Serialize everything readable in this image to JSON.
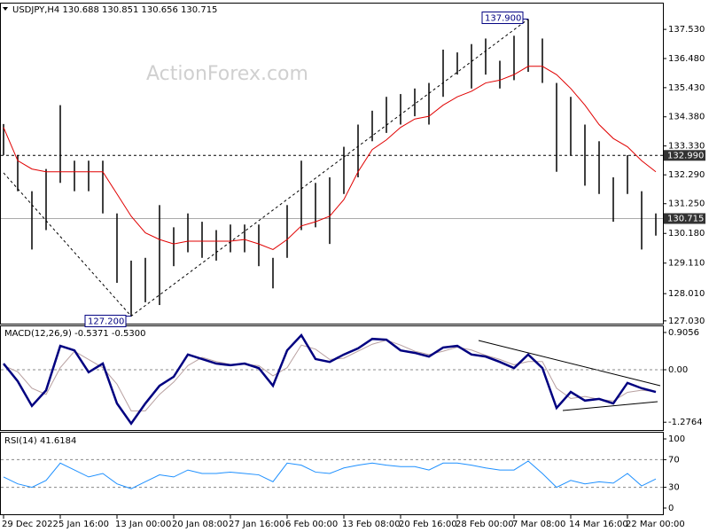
{
  "chart_data": [
    {
      "type": "hilo",
      "title": "USDJPY,H4 130.688 130.851 130.656 130.715",
      "watermark": "ActionForex.com",
      "high": {
        "color": "#000000",
        "values": [
          134.12,
          133.0,
          131.7,
          132.5,
          134.8,
          132.8,
          132.8,
          132.8,
          130.9,
          129.2,
          129.3,
          131.2,
          130.4,
          130.9,
          130.6,
          130.3,
          130.5,
          130.5,
          130.5,
          129.3,
          131.2,
          132.8,
          132.0,
          132.2,
          133.3,
          134.1,
          134.6,
          135.1,
          135.2,
          135.4,
          135.6,
          136.8,
          136.7,
          137.0,
          137.2,
          136.4,
          137.3,
          137.9,
          137.2,
          135.6,
          135.1,
          134.1,
          133.5,
          132.2,
          133.0,
          131.7,
          130.9
        ]
      },
      "low": {
        "color": "#000000",
        "values": [
          133.0,
          131.7,
          129.6,
          130.3,
          132.0,
          131.7,
          131.7,
          130.9,
          128.4,
          127.2,
          127.7,
          127.6,
          129.0,
          129.5,
          129.3,
          129.2,
          129.5,
          129.5,
          129.0,
          128.2,
          129.3,
          130.3,
          130.4,
          129.8,
          131.6,
          132.2,
          133.5,
          133.8,
          134.1,
          134.4,
          134.1,
          135.1,
          135.9,
          135.4,
          135.9,
          135.4,
          135.7,
          136.0,
          135.6,
          132.4,
          133.0,
          131.9,
          131.6,
          130.6,
          131.6,
          129.6,
          130.1
        ]
      },
      "ma": {
        "color": "#e00000",
        "values": [
          134.0,
          132.8,
          132.5,
          132.4,
          132.4,
          132.4,
          132.4,
          132.4,
          131.6,
          130.8,
          130.2,
          129.96,
          129.8,
          129.9,
          129.9,
          129.9,
          129.9,
          129.96,
          129.8,
          129.6,
          129.96,
          130.45,
          130.6,
          130.8,
          131.4,
          132.4,
          133.2,
          133.55,
          134.0,
          134.3,
          134.4,
          134.8,
          135.1,
          135.3,
          135.6,
          135.7,
          135.9,
          136.2,
          136.2,
          135.9,
          135.4,
          134.8,
          134.1,
          133.6,
          133.3,
          132.8,
          132.4
        ]
      },
      "ylim": [
        126.93,
        138.46
      ],
      "yticks": [
        {
          "value": 127.03,
          "label": "127.030"
        },
        {
          "value": 128.01,
          "label": "128.010"
        },
        {
          "value": 129.11,
          "label": "129.110"
        },
        {
          "value": 130.18,
          "label": "130.180"
        },
        {
          "value": 131.25,
          "label": "131.250"
        },
        {
          "value": 132.29,
          "label": "132.290"
        },
        {
          "value": 133.33,
          "label": "133.330"
        },
        {
          "value": 134.38,
          "label": "134.380"
        },
        {
          "value": 135.43,
          "label": "135.430"
        },
        {
          "value": 136.48,
          "label": "136.480"
        },
        {
          "value": 137.53,
          "label": "137.530"
        }
      ],
      "levels": [
        {
          "value": 132.99,
          "label": "132.990",
          "dashed": true
        },
        {
          "value": 130.715,
          "label": "130.715",
          "dashed": false
        }
      ],
      "annotations": [
        {
          "value": 137.9,
          "label": "137.900"
        },
        {
          "value": 127.2,
          "label": "127.200"
        }
      ]
    },
    {
      "type": "macd",
      "title": "MACD(12,26,9) -0.5371 -0.5300",
      "main": {
        "color": "#000080",
        "values": [
          0.15,
          -0.28,
          -0.88,
          -0.5,
          0.58,
          0.47,
          -0.06,
          0.15,
          -0.82,
          -1.31,
          -0.82,
          -0.39,
          -0.17,
          0.37,
          0.26,
          0.15,
          0.11,
          0.15,
          0.04,
          -0.39,
          0.47,
          0.84,
          0.26,
          0.19,
          0.37,
          0.52,
          0.75,
          0.73,
          0.47,
          0.41,
          0.32,
          0.54,
          0.58,
          0.37,
          0.32,
          0.19,
          0.04,
          0.37,
          0.04,
          -0.93,
          -0.54,
          -0.75,
          -0.71,
          -0.82,
          -0.32,
          -0.45,
          -0.54
        ]
      },
      "signal": {
        "color": "#b8a0a0",
        "values": [
          0.1,
          -0.05,
          -0.45,
          -0.6,
          0.05,
          0.45,
          0.25,
          0.05,
          -0.35,
          -1.0,
          -1.0,
          -0.6,
          -0.3,
          0.1,
          0.3,
          0.2,
          0.13,
          0.13,
          0.1,
          -0.15,
          0.05,
          0.6,
          0.5,
          0.25,
          0.28,
          0.45,
          0.62,
          0.72,
          0.6,
          0.45,
          0.37,
          0.45,
          0.55,
          0.48,
          0.35,
          0.25,
          0.12,
          0.2,
          0.2,
          -0.45,
          -0.7,
          -0.65,
          -0.72,
          -0.76,
          -0.55,
          -0.5,
          -0.53
        ]
      },
      "ylim": [
        -1.466,
        1.056
      ],
      "yticks": [
        0.9056,
        {
          "value": 0,
          "label": "0.00"
        },
        -1.2764
      ],
      "dashed_levels": [
        0
      ]
    },
    {
      "type": "rsi",
      "title": "RSI(14) 41.6184",
      "line": {
        "color": "#1e90ff",
        "values": [
          45,
          35,
          30,
          40,
          65,
          55,
          45,
          50,
          35,
          28,
          38,
          48,
          45,
          55,
          50,
          50,
          52,
          50,
          48,
          38,
          65,
          62,
          52,
          50,
          58,
          62,
          65,
          62,
          60,
          60,
          55,
          65,
          65,
          62,
          58,
          55,
          55,
          68,
          50,
          30,
          40,
          35,
          38,
          36,
          50,
          32,
          42
        ]
      },
      "ylim": [
        -9,
        109
      ],
      "yticks": [
        100,
        70,
        30,
        0
      ],
      "dashed_levels": [
        70,
        30
      ],
      "categories": [
        "29 Dec 2022",
        null,
        null,
        null,
        "5 Jan 16:00",
        null,
        null,
        null,
        "13 Jan 00:00",
        null,
        null,
        null,
        "20 Jan 08:00",
        null,
        null,
        null,
        "27 Jan 16:00",
        null,
        null,
        null,
        "6 Feb 00:00",
        null,
        null,
        null,
        "13 Feb 08:00",
        null,
        null,
        null,
        "20 Feb 16:00",
        null,
        null,
        null,
        "28 Feb 00:00",
        null,
        null,
        null,
        "7 Mar 08:00",
        null,
        null,
        null,
        "14 Mar 16:00",
        null,
        null,
        null,
        "22 Mar 00:00",
        null,
        null
      ]
    }
  ]
}
